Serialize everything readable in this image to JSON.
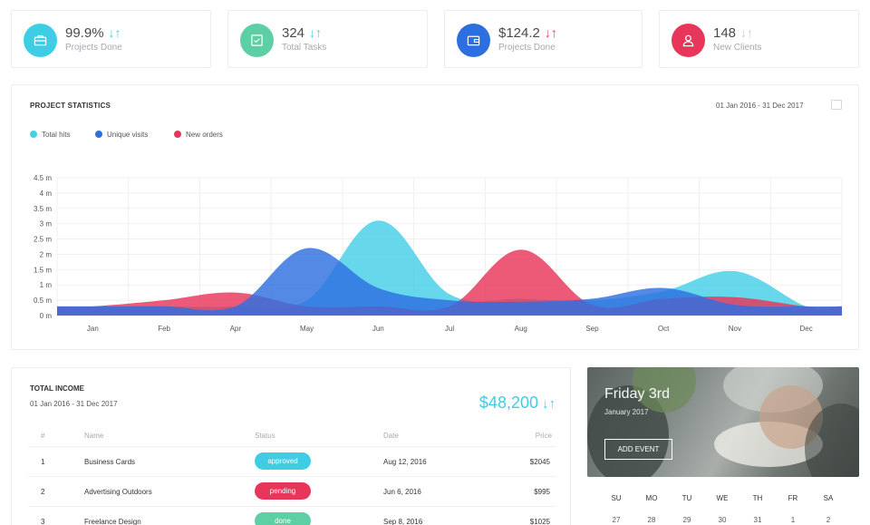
{
  "stats": [
    {
      "value": "99.9%",
      "label": "Projects Done",
      "arrow": "↓↑",
      "color": "#3fcde6",
      "icon": "briefcase-icon"
    },
    {
      "value": "324",
      "label": "Total Tasks",
      "arrow": "↓↑",
      "color": "#5ccfa4",
      "icon": "checklist-icon"
    },
    {
      "value": "$124.2",
      "label": "Projects Done",
      "arrow": "↓↑",
      "color": "#2d6fe0",
      "icon": "wallet-icon"
    },
    {
      "value": "148",
      "label": "New Clients",
      "arrow": "↓↑",
      "color": "#e8365a",
      "icon": "user-icon"
    }
  ],
  "project_stats": {
    "title": "PROJECT STATISTICS",
    "date_range": "01 Jan 2016 - 31 Dec 2017",
    "legend": [
      {
        "name": "Total hits",
        "color": "#45d0e8"
      },
      {
        "name": "Unique visits",
        "color": "#2e6fe0"
      },
      {
        "name": "New orders",
        "color": "#e8365a"
      }
    ]
  },
  "chart_data": {
    "type": "area",
    "categories": [
      "Jan",
      "Feb",
      "Apr",
      "May",
      "Jun",
      "Jul",
      "Aug",
      "Sep",
      "Oct",
      "Nov",
      "Dec"
    ],
    "y_ticks": [
      "0 m",
      "0.5 m",
      "1 m",
      "1.5 m",
      "2 m",
      "2.5 m",
      "3 m",
      "3.5 m",
      "4 m",
      "4.5 m"
    ],
    "ylim": [
      0,
      4.5
    ],
    "grid": true,
    "legend_position": "top-left",
    "series": [
      {
        "name": "Total hits",
        "color": "#45d0e8",
        "values": [
          0.3,
          0.3,
          0.3,
          0.5,
          3.1,
          0.7,
          0.55,
          0.5,
          0.8,
          1.45,
          0.3
        ]
      },
      {
        "name": "New orders",
        "color": "#e8365a",
        "values": [
          0.3,
          0.5,
          0.75,
          0.3,
          0.3,
          0.3,
          2.15,
          0.35,
          0.55,
          0.6,
          0.3
        ]
      },
      {
        "name": "Unique visits",
        "color": "#2e6fe0",
        "values": [
          0.3,
          0.3,
          0.3,
          2.2,
          0.9,
          0.5,
          0.45,
          0.55,
          0.9,
          0.35,
          0.3
        ]
      }
    ]
  },
  "income": {
    "title": "TOTAL INCOME",
    "date_range": "01 Jan 2016 - 31 Dec 2017",
    "total": "$48,200",
    "total_arrow": "↓↑",
    "headers": {
      "num": "#",
      "name": "Name",
      "status": "Status",
      "date": "Date",
      "price": "Price"
    },
    "rows": [
      {
        "num": "1",
        "name": "Business Cards",
        "status": "approved",
        "status_color": "#3fcde6",
        "date": "Aug 12, 2016",
        "price": "$2045"
      },
      {
        "num": "2",
        "name": "Advertising Outdoors",
        "status": "pending",
        "status_color": "#e8365a",
        "date": "Jun 6, 2016",
        "price": "$995"
      },
      {
        "num": "3",
        "name": "Freelance Design",
        "status": "done",
        "status_color": "#5ccfa4",
        "date": "Sep 8, 2016",
        "price": "$1025"
      }
    ]
  },
  "calendar": {
    "day": "Friday 3rd",
    "month": "January 2017",
    "add_event": "ADD EVENT",
    "weekdays": [
      "SU",
      "MO",
      "TU",
      "WE",
      "TH",
      "FR",
      "SA"
    ],
    "days": [
      "27",
      "28",
      "29",
      "30",
      "31",
      "1",
      "2"
    ]
  }
}
